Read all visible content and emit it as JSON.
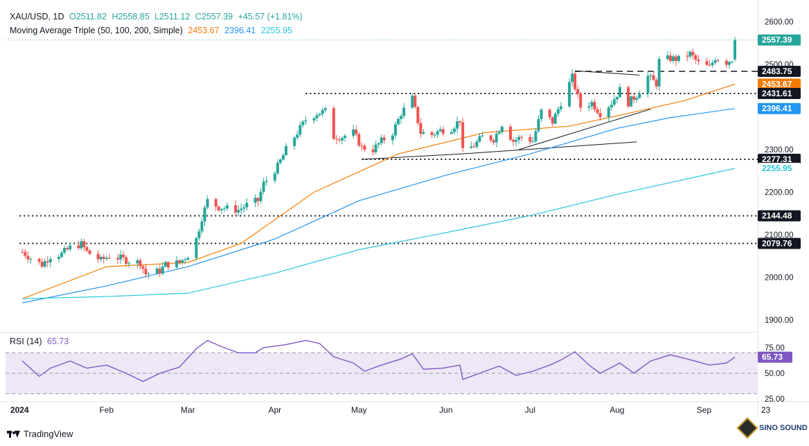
{
  "legend": {
    "symbol": "XAU/USD, 1D",
    "open": "O2511.82",
    "high": "H2558.85",
    "low": "L2511.12",
    "close": "C2557.39",
    "change": "+45.57 (+1.81%)",
    "ma_title": "Moving Average Triple (50, 100, 200, Simple)",
    "ma50": "2453.67",
    "ma100": "2396.41",
    "ma200": "2255.95",
    "rsi_title": "RSI (14)",
    "rsi_value": "65.73"
  },
  "colors": {
    "up": "#26a69a",
    "down": "#ef5350",
    "ma50": "#f57c00",
    "ma100": "#2196f3",
    "ma200": "#26c6da",
    "rsi": "#7e57c2",
    "rsi_band": "#ede7f6",
    "price_tag": "#26a69a",
    "level_tag": "#131722"
  },
  "branding": {
    "tradingview": "TradingView",
    "watermark": "SINO SOUND"
  },
  "chart_data": {
    "type": "candlestick",
    "instrument": "XAU/USD",
    "timeframe": "1D",
    "price_axis": {
      "ticks": [
        "2600.00",
        "2500.00",
        "2300.00",
        "2200.00",
        "2100.00",
        "2000.00",
        "1900.00"
      ],
      "range": [
        1890,
        2610
      ]
    },
    "rsi_axis": {
      "ticks": [
        "75.00",
        "50.00",
        "25.00"
      ],
      "range": [
        20,
        90
      ]
    },
    "time_axis": {
      "labels": [
        "2024",
        "Feb",
        "Mar",
        "Apr",
        "May",
        "Jun",
        "Jul",
        "Aug",
        "Sep",
        "23"
      ]
    },
    "price_tags": [
      {
        "label": "2557.39",
        "value": 2557.39,
        "kind": "last"
      },
      {
        "label": "2483.75",
        "value": 2483.75,
        "kind": "level"
      },
      {
        "label": "2453.67",
        "value": 2453.67,
        "kind": "ma50"
      },
      {
        "label": "2431.61",
        "value": 2431.61,
        "kind": "level"
      },
      {
        "label": "2396.41",
        "value": 2396.41,
        "kind": "ma100"
      },
      {
        "label": "2277.31",
        "value": 2277.31,
        "kind": "level"
      },
      {
        "label": "2255.95",
        "value": 2255.95,
        "kind": "ma200"
      },
      {
        "label": "2144.48",
        "value": 2144.48,
        "kind": "level"
      },
      {
        "label": "2079.76",
        "value": 2079.76,
        "kind": "level"
      }
    ],
    "rsi_tag": {
      "label": "65.73",
      "value": 65.73
    },
    "close_path": [
      [
        "2024-01-02",
        2060
      ],
      [
        "2024-01-05",
        2045
      ],
      [
        "2024-01-09",
        2030
      ],
      [
        "2024-01-12",
        2050
      ],
      [
        "2024-01-16",
        2055
      ],
      [
        "2024-01-19",
        2070
      ],
      [
        "2024-01-23",
        2078
      ],
      [
        "2024-01-25",
        2060
      ],
      [
        "2024-01-30",
        2040
      ],
      [
        "2024-02-02",
        2050
      ],
      [
        "2024-02-06",
        2045
      ],
      [
        "2024-02-09",
        2038
      ],
      [
        "2024-02-13",
        2035
      ],
      [
        "2024-02-15",
        2008
      ],
      [
        "2024-02-20",
        2015
      ],
      [
        "2024-02-22",
        2030
      ],
      [
        "2024-02-27",
        2035
      ],
      [
        "2024-03-01",
        2052
      ],
      [
        "2024-03-04",
        2090
      ],
      [
        "2024-03-06",
        2140
      ],
      [
        "2024-03-08",
        2180
      ],
      [
        "2024-03-12",
        2165
      ],
      [
        "2024-03-15",
        2162
      ],
      [
        "2024-03-19",
        2158
      ],
      [
        "2024-03-22",
        2170
      ],
      [
        "2024-03-26",
        2180
      ],
      [
        "2024-03-28",
        2220
      ],
      [
        "2024-04-02",
        2260
      ],
      [
        "2024-04-05",
        2300
      ],
      [
        "2024-04-09",
        2340
      ],
      [
        "2024-04-12",
        2370
      ],
      [
        "2024-04-16",
        2385
      ],
      [
        "2024-04-19",
        2390
      ],
      [
        "2024-04-22",
        2330
      ],
      [
        "2024-04-25",
        2330
      ],
      [
        "2024-04-29",
        2340
      ],
      [
        "2024-05-02",
        2305
      ],
      [
        "2024-05-06",
        2300
      ],
      [
        "2024-05-09",
        2320
      ],
      [
        "2024-05-13",
        2340
      ],
      [
        "2024-05-16",
        2385
      ],
      [
        "2024-05-20",
        2420
      ],
      [
        "2024-05-23",
        2340
      ],
      [
        "2024-05-27",
        2335
      ],
      [
        "2024-05-30",
        2345
      ],
      [
        "2024-06-03",
        2350
      ],
      [
        "2024-06-06",
        2370
      ],
      [
        "2024-06-07",
        2295
      ],
      [
        "2024-06-11",
        2310
      ],
      [
        "2024-06-14",
        2330
      ],
      [
        "2024-06-18",
        2325
      ],
      [
        "2024-06-21",
        2360
      ],
      [
        "2024-06-25",
        2320
      ],
      [
        "2024-06-28",
        2330
      ],
      [
        "2024-07-02",
        2320
      ],
      [
        "2024-07-05",
        2390
      ],
      [
        "2024-07-09",
        2365
      ],
      [
        "2024-07-12",
        2410
      ],
      [
        "2024-07-16",
        2470
      ],
      [
        "2024-07-19",
        2400
      ],
      [
        "2024-07-23",
        2410
      ],
      [
        "2024-07-26",
        2385
      ],
      [
        "2024-07-30",
        2410
      ],
      [
        "2024-08-02",
        2440
      ],
      [
        "2024-08-05",
        2410
      ],
      [
        "2024-08-08",
        2428
      ],
      [
        "2024-08-12",
        2472
      ],
      [
        "2024-08-15",
        2455
      ],
      [
        "2024-08-16",
        2508
      ],
      [
        "2024-08-20",
        2514
      ],
      [
        "2024-08-23",
        2512
      ],
      [
        "2024-08-27",
        2525
      ],
      [
        "2024-08-30",
        2503
      ],
      [
        "2024-09-03",
        2493
      ],
      [
        "2024-09-05",
        2516
      ],
      [
        "2024-09-09",
        2505
      ],
      [
        "2024-09-11",
        2512
      ],
      [
        "2024-09-12",
        2557.39
      ]
    ],
    "moving_averages": [
      {
        "name": "50",
        "points": [
          [
            "2024-01-02",
            1950
          ],
          [
            "2024-02-01",
            2025
          ],
          [
            "2024-03-01",
            2035
          ],
          [
            "2024-03-20",
            2080
          ],
          [
            "2024-04-15",
            2200
          ],
          [
            "2024-05-15",
            2290
          ],
          [
            "2024-06-15",
            2340
          ],
          [
            "2024-07-15",
            2355
          ],
          [
            "2024-08-05",
            2385
          ],
          [
            "2024-08-25",
            2415
          ],
          [
            "2024-09-12",
            2453.67
          ]
        ]
      },
      {
        "name": "100",
        "points": [
          [
            "2024-01-02",
            1940
          ],
          [
            "2024-02-01",
            1980
          ],
          [
            "2024-03-01",
            2025
          ],
          [
            "2024-04-01",
            2090
          ],
          [
            "2024-05-01",
            2180
          ],
          [
            "2024-06-01",
            2240
          ],
          [
            "2024-07-01",
            2290
          ],
          [
            "2024-08-01",
            2350
          ],
          [
            "2024-08-20",
            2375
          ],
          [
            "2024-09-12",
            2396.41
          ]
        ]
      },
      {
        "name": "200",
        "points": [
          [
            "2024-01-02",
            1950
          ],
          [
            "2024-02-01",
            1955
          ],
          [
            "2024-03-01",
            1963
          ],
          [
            "2024-04-01",
            2010
          ],
          [
            "2024-05-01",
            2065
          ],
          [
            "2024-06-01",
            2105
          ],
          [
            "2024-07-01",
            2145
          ],
          [
            "2024-08-01",
            2195
          ],
          [
            "2024-09-12",
            2255.95
          ]
        ]
      }
    ],
    "levels": [
      {
        "value": 2483.75,
        "style": "dashed",
        "from": "2024-07-17"
      },
      {
        "value": 2431.61,
        "style": "dotted",
        "from": "2024-04-12"
      },
      {
        "value": 2277.31,
        "style": "dotted",
        "from": "2024-05-02"
      },
      {
        "value": 2144.48,
        "style": "dotted",
        "from": "2024-01-01"
      },
      {
        "value": 2079.76,
        "style": "dotted",
        "from": "2024-01-01"
      }
    ],
    "trendlines": [
      {
        "points": [
          [
            "2024-05-02",
            2277
          ],
          [
            "2024-06-07",
            2290
          ]
        ]
      },
      {
        "points": [
          [
            "2024-06-07",
            2290
          ],
          [
            "2024-08-08",
            2318
          ]
        ]
      },
      {
        "points": [
          [
            "2024-06-27",
            2300
          ],
          [
            "2024-08-13",
            2395
          ]
        ]
      },
      {
        "points": [
          [
            "2024-07-17",
            2485
          ],
          [
            "2024-08-09",
            2475
          ]
        ]
      }
    ],
    "rsi_path": [
      [
        "2024-01-02",
        62
      ],
      [
        "2024-01-08",
        47
      ],
      [
        "2024-01-12",
        55
      ],
      [
        "2024-01-19",
        62
      ],
      [
        "2024-01-25",
        55
      ],
      [
        "2024-02-01",
        58
      ],
      [
        "2024-02-08",
        50
      ],
      [
        "2024-02-14",
        42
      ],
      [
        "2024-02-20",
        50
      ],
      [
        "2024-02-27",
        56
      ],
      [
        "2024-03-04",
        74
      ],
      [
        "2024-03-08",
        82
      ],
      [
        "2024-03-13",
        76
      ],
      [
        "2024-03-19",
        70
      ],
      [
        "2024-03-25",
        70
      ],
      [
        "2024-03-28",
        75
      ],
      [
        "2024-04-05",
        78
      ],
      [
        "2024-04-12",
        82
      ],
      [
        "2024-04-17",
        79
      ],
      [
        "2024-04-22",
        66
      ],
      [
        "2024-04-29",
        60
      ],
      [
        "2024-05-03",
        52
      ],
      [
        "2024-05-09",
        58
      ],
      [
        "2024-05-16",
        64
      ],
      [
        "2024-05-20",
        69
      ],
      [
        "2024-05-24",
        54
      ],
      [
        "2024-05-31",
        55
      ],
      [
        "2024-06-06",
        58
      ],
      [
        "2024-06-07",
        44
      ],
      [
        "2024-06-13",
        50
      ],
      [
        "2024-06-20",
        57
      ],
      [
        "2024-06-26",
        48
      ],
      [
        "2024-07-02",
        52
      ],
      [
        "2024-07-08",
        58
      ],
      [
        "2024-07-12",
        63
      ],
      [
        "2024-07-17",
        71
      ],
      [
        "2024-07-22",
        58
      ],
      [
        "2024-07-26",
        50
      ],
      [
        "2024-08-02",
        60
      ],
      [
        "2024-08-07",
        50
      ],
      [
        "2024-08-13",
        62
      ],
      [
        "2024-08-20",
        68
      ],
      [
        "2024-08-26",
        64
      ],
      [
        "2024-09-03",
        58
      ],
      [
        "2024-09-09",
        60
      ],
      [
        "2024-09-12",
        65.73
      ]
    ]
  }
}
